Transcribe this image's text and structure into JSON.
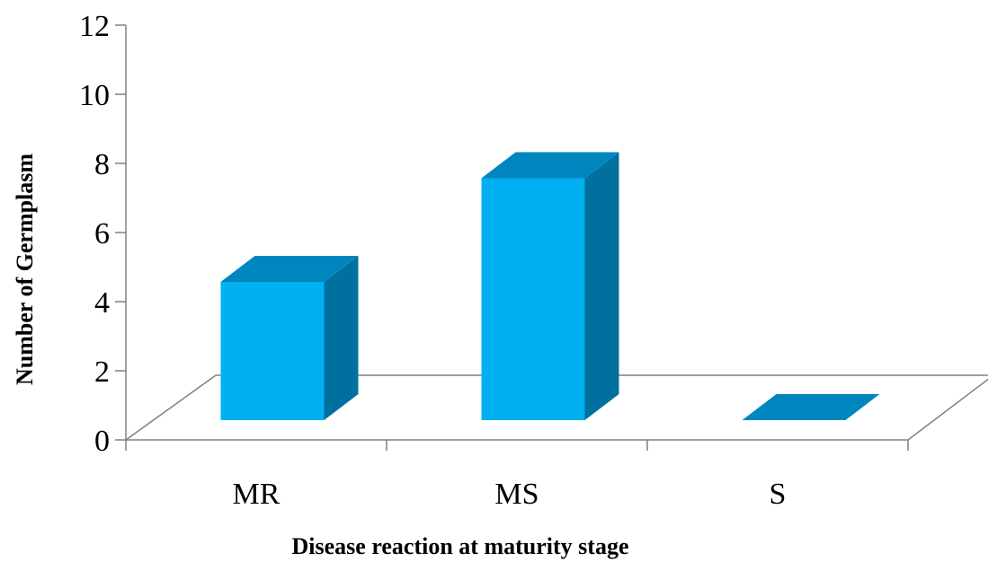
{
  "chart_data": {
    "type": "bar",
    "style": "3d-column",
    "categories": [
      "MR",
      "MS",
      "S"
    ],
    "values": [
      4,
      7,
      0
    ],
    "xlabel": "Disease reaction at maturity stage",
    "ylabel": "Number of Germplasm",
    "ylim": [
      0,
      12
    ],
    "yticks": [
      0,
      2,
      4,
      6,
      8,
      10,
      12
    ],
    "grid": false,
    "legend": "none",
    "colors": {
      "front": "#00B0F0",
      "top": "#0086BF",
      "side": "#00709F",
      "axis": "#808080",
      "floor": "#ffffff"
    }
  }
}
